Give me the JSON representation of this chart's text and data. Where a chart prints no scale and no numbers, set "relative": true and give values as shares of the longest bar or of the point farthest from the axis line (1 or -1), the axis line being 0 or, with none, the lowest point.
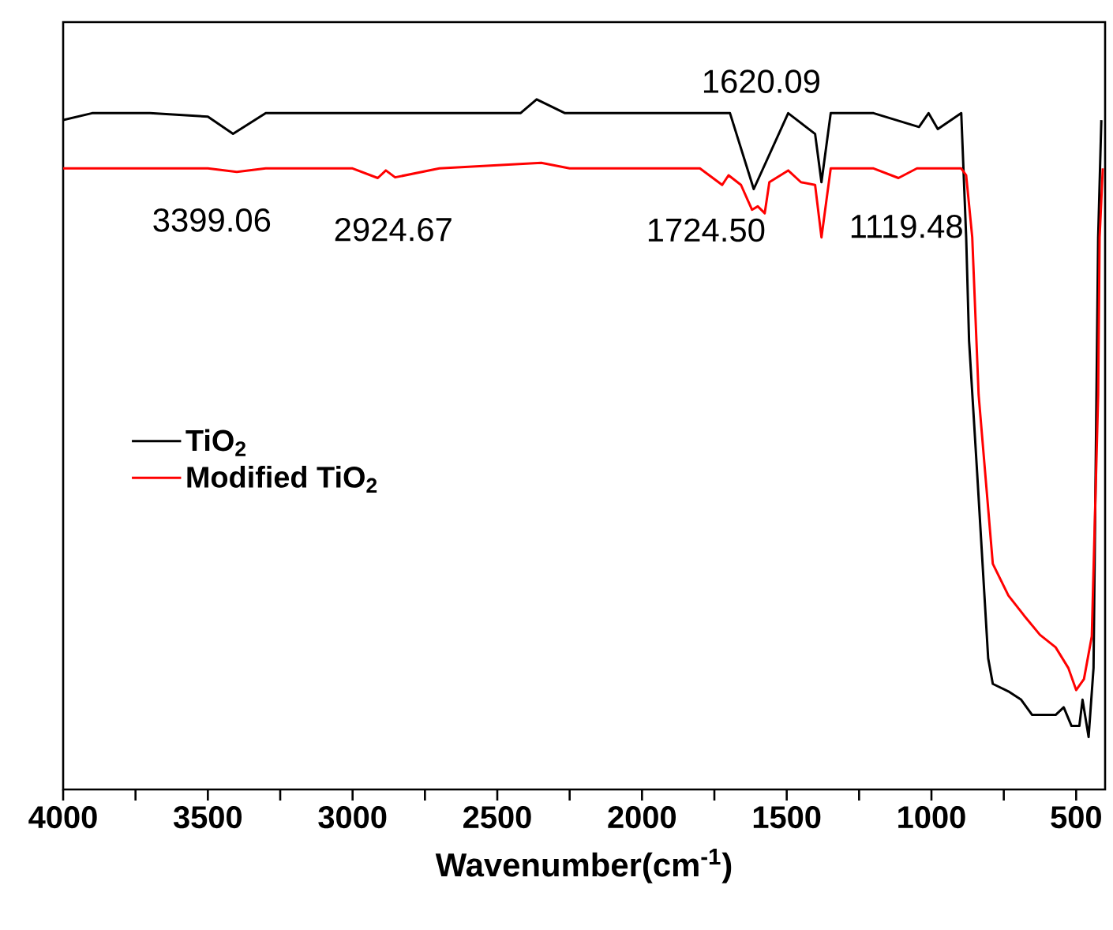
{
  "chart_data": {
    "type": "line",
    "relative": true,
    "xlabel": "Wavenumber(cm$^{-1}$)",
    "xlim": [
      4000,
      400
    ],
    "xticks": [
      4000,
      {
        "value": 3750,
        "label": null
      },
      3500,
      {
        "value": 3250,
        "label": null
      },
      3000,
      {
        "value": 2750,
        "label": null
      },
      2500,
      {
        "value": 2250,
        "label": null
      },
      2000,
      {
        "value": 1750,
        "label": null
      },
      1500,
      {
        "value": 1250,
        "label": null
      },
      1000,
      {
        "value": 750,
        "label": null
      },
      500
    ],
    "legend": "left",
    "series": [
      {
        "name": "TiO$_{2}$",
        "color": "#000000",
        "x": [
          4000,
          3900,
          3700,
          3500,
          3413,
          3300,
          3000,
          2700,
          2420,
          2364,
          2266,
          2000,
          1800,
          1696,
          1614,
          1495,
          1402,
          1380,
          1348,
          1200,
          1043,
          1010,
          978,
          897,
          880,
          870,
          842,
          804,
          788,
          734,
          690,
          652,
          610,
          571,
          543,
          516,
          489,
          478,
          457,
          440,
          424,
          413
        ],
        "values": [
          0.97,
          0.98,
          0.98,
          0.975,
          0.95,
          0.98,
          0.98,
          0.98,
          0.98,
          1.0,
          0.98,
          0.98,
          0.98,
          0.98,
          0.87,
          0.98,
          0.95,
          0.88,
          0.98,
          0.98,
          0.96,
          0.98,
          0.957,
          0.98,
          0.8,
          0.65,
          0.458,
          0.19,
          0.153,
          0.142,
          0.13,
          0.108,
          0.108,
          0.108,
          0.119,
          0.092,
          0.092,
          0.13,
          0.076,
          0.176,
          0.8,
          0.97
        ]
      },
      {
        "name": "Modified TiO$_{2}$",
        "color": "#ff0000",
        "x": [
          4000,
          3700,
          3500,
          3400,
          3300,
          3000,
          2913,
          2885,
          2853,
          2700,
          2348,
          2250,
          2000,
          1800,
          1723,
          1701,
          1658,
          1620,
          1600,
          1576,
          1560,
          1495,
          1451,
          1402,
          1380,
          1348,
          1200,
          1114,
          1050,
          897,
          880,
          859,
          837,
          788,
          734,
          680,
          625,
          571,
          527,
          500,
          473,
          446,
          424,
          419,
          408
        ],
        "values": [
          0.9,
          0.9,
          0.9,
          0.895,
          0.9,
          0.9,
          0.886,
          0.897,
          0.887,
          0.9,
          0.908,
          0.9,
          0.9,
          0.9,
          0.876,
          0.89,
          0.876,
          0.84,
          0.845,
          0.835,
          0.88,
          0.897,
          0.88,
          0.876,
          0.8,
          0.9,
          0.9,
          0.886,
          0.9,
          0.9,
          0.89,
          0.8,
          0.572,
          0.327,
          0.281,
          0.252,
          0.224,
          0.206,
          0.176,
          0.144,
          0.16,
          0.222,
          0.572,
          0.8,
          0.9
        ]
      }
    ],
    "annotations": [
      {
        "text": "3399.06",
        "x": 3399.06,
        "y": 0.895
      },
      {
        "text": "2924.67",
        "x": 2924.67,
        "y": 0.886
      },
      "1620.09",
      {
        "text": "1724.50",
        "x": 1724.5,
        "y": 0.876
      },
      {
        "text": "1119.48",
        "x": 1119.48,
        "y": 0.886
      }
    ]
  }
}
